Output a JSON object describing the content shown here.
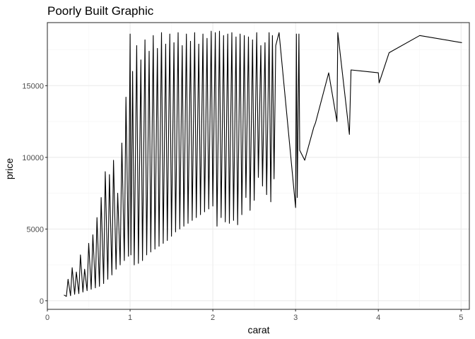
{
  "chart_data": {
    "type": "line",
    "title": "Poorly Built Graphic",
    "xlabel": "carat",
    "ylabel": "price",
    "xlim": [
      0,
      5.1
    ],
    "ylim": [
      -600,
      19400
    ],
    "x_ticks": [
      0,
      1,
      2,
      3,
      4,
      5
    ],
    "x_tick_labels": [
      "0",
      "1",
      "2",
      "3",
      "4",
      "5"
    ],
    "y_ticks": [
      0,
      5000,
      10000,
      15000
    ],
    "y_tick_labels": [
      "0",
      "5000",
      "10000",
      "15000"
    ],
    "grid": true,
    "legend": "none",
    "colors": {
      "line": "#000000",
      "grid": "#ebebeb",
      "border": "#333333",
      "background": "#ffffff"
    },
    "series": [
      {
        "x": [
          0.2,
          0.23,
          0.25,
          0.28,
          0.3,
          0.33,
          0.35,
          0.38,
          0.4,
          0.43,
          0.45,
          0.48,
          0.5,
          0.53,
          0.55,
          0.58,
          0.6,
          0.63,
          0.65,
          0.68,
          0.7,
          0.73,
          0.75,
          0.78,
          0.8,
          0.83,
          0.85,
          0.88,
          0.9,
          0.93,
          0.95,
          0.98,
          1.0,
          1.01,
          1.03,
          1.05,
          1.08,
          1.1,
          1.13,
          1.15,
          1.18,
          1.2,
          1.23,
          1.25,
          1.28,
          1.3,
          1.33,
          1.35,
          1.38,
          1.4,
          1.43,
          1.45,
          1.48,
          1.5,
          1.53,
          1.55,
          1.58,
          1.6,
          1.63,
          1.65,
          1.68,
          1.7,
          1.73,
          1.75,
          1.78,
          1.8,
          1.83,
          1.85,
          1.88,
          1.9,
          1.93,
          1.95,
          1.98,
          2.0,
          2.03,
          2.05,
          2.08,
          2.1,
          2.13,
          2.15,
          2.18,
          2.2,
          2.23,
          2.25,
          2.28,
          2.3,
          2.33,
          2.35,
          2.38,
          2.4,
          2.43,
          2.45,
          2.48,
          2.5,
          2.53,
          2.55,
          2.58,
          2.6,
          2.63,
          2.65,
          2.68,
          2.7,
          2.72,
          2.74,
          2.76,
          2.8,
          3.0,
          3.01,
          3.02,
          3.04,
          3.05,
          3.11,
          3.22,
          3.24,
          3.4,
          3.5,
          3.51,
          3.65,
          3.67,
          4.0,
          4.01,
          4.13,
          4.5,
          5.01
        ],
        "y": [
          400,
          300,
          1500,
          350,
          2300,
          450,
          2000,
          500,
          3200,
          600,
          2200,
          700,
          4000,
          800,
          4600,
          900,
          5800,
          1000,
          7200,
          1200,
          9000,
          1500,
          8800,
          1800,
          9800,
          2200,
          7500,
          2500,
          11000,
          2800,
          14200,
          3100,
          18600,
          3200,
          16000,
          2500,
          17800,
          2600,
          16800,
          2800,
          18200,
          3200,
          17400,
          3400,
          18500,
          3600,
          17600,
          3800,
          18700,
          4000,
          17900,
          4200,
          18600,
          4500,
          18000,
          4800,
          18700,
          5000,
          17800,
          5200,
          18600,
          5400,
          18100,
          5600,
          18700,
          5800,
          17900,
          6000,
          18600,
          6200,
          18300,
          6400,
          18800,
          6600,
          18700,
          5200,
          18800,
          5800,
          18500,
          5500,
          18600,
          5400,
          18700,
          5600,
          18400,
          5300,
          18600,
          6000,
          18500,
          7200,
          18400,
          6300,
          18200,
          7000,
          18700,
          8600,
          17800,
          8000,
          18000,
          7400,
          18700,
          6900,
          18500,
          8500,
          17800,
          18700,
          6500,
          18600,
          7200,
          18600,
          10500,
          9800,
          12100,
          12400,
          15900,
          12500,
          18700,
          11600,
          16100,
          15900,
          15200,
          17300,
          18500,
          18000
        ]
      }
    ]
  }
}
